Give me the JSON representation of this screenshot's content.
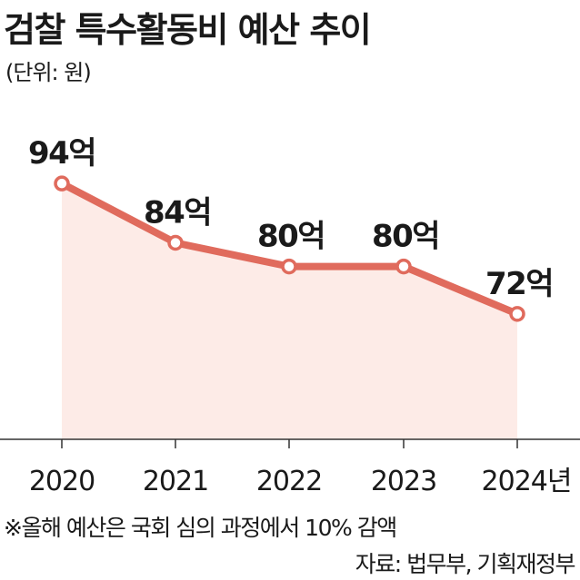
{
  "header": {
    "title": "검찰 특수활동비 예산 추이",
    "unit": "(단위: 원)"
  },
  "chart_data": {
    "type": "line",
    "title": "검찰 특수활동비 예산 추이",
    "unit_label": "(단위: 원)",
    "x": [
      "2020",
      "2021",
      "2022",
      "2023",
      "2024년"
    ],
    "series": [
      {
        "values": [
          94,
          84,
          80,
          80,
          72
        ],
        "data_labels": [
          "94억",
          "84억",
          "80억",
          "80억",
          "72억"
        ]
      }
    ],
    "ylim": [
      51,
      100
    ],
    "grid": false,
    "legend": "none",
    "colors": {
      "line": "#e06b5d",
      "area": "#fdebe7",
      "marker_fill": "#ffffff",
      "axis": "#333333"
    }
  },
  "footer": {
    "note": "※올해 예산은 국회 심의 과정에서 10% 감액",
    "source": "자료: 법무부, 기획재정부"
  }
}
